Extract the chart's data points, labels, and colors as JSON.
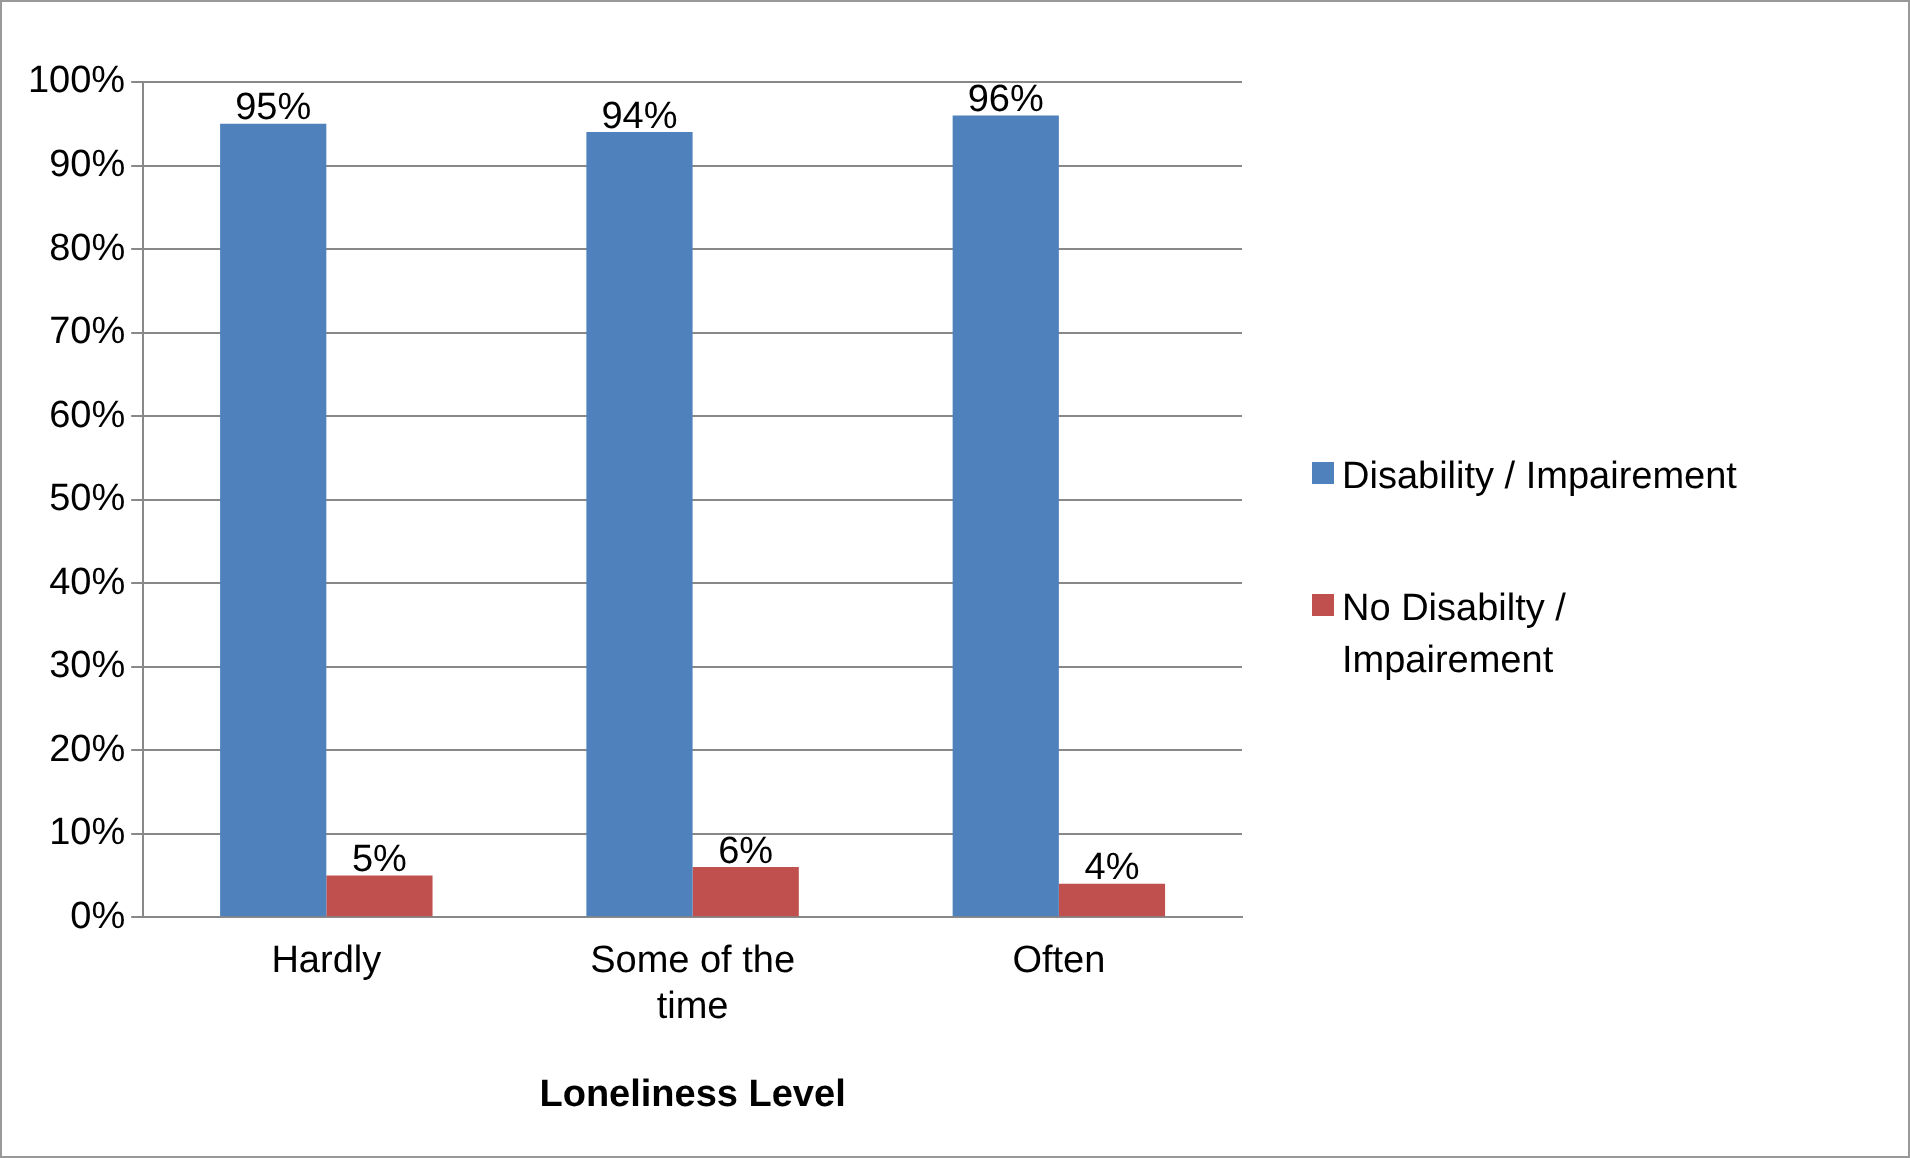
{
  "chart_data": {
    "type": "bar",
    "xlabel": "Loneliness Level",
    "categories": [
      "Hardly",
      "Some of the time",
      "Often"
    ],
    "series": [
      {
        "name": "Disability / Impairement",
        "color": "#4f81bd",
        "values": [
          95,
          94,
          96
        ],
        "value_labels": [
          "95%",
          "94%",
          "96%"
        ]
      },
      {
        "name": "No Disabilty / Impairement",
        "color": "#c0504d",
        "values": [
          5,
          6,
          4
        ],
        "value_labels": [
          "5%",
          "6%",
          "4%"
        ]
      }
    ],
    "ylim": [
      0,
      100
    ],
    "yticks": [
      {
        "value": 0,
        "label": "0%"
      },
      {
        "value": 10,
        "label": "10%"
      },
      {
        "value": 20,
        "label": "20%"
      },
      {
        "value": 30,
        "label": "30%"
      },
      {
        "value": 40,
        "label": "40%"
      },
      {
        "value": 50,
        "label": "50%"
      },
      {
        "value": 60,
        "label": "60%"
      },
      {
        "value": 70,
        "label": "70%"
      },
      {
        "value": 80,
        "label": "80%"
      },
      {
        "value": 90,
        "label": "90%"
      },
      {
        "value": 100,
        "label": "100%"
      }
    ],
    "grid": "y",
    "legend": "right"
  }
}
